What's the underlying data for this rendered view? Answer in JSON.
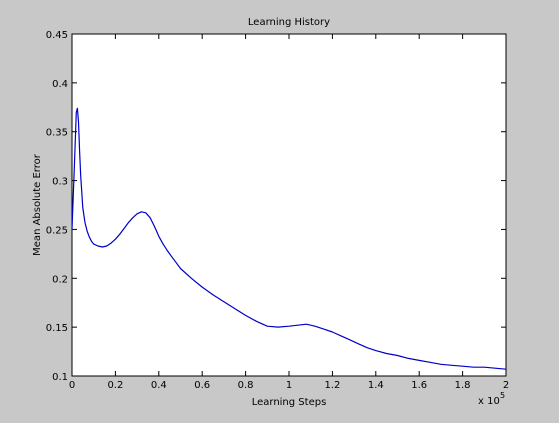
{
  "chart_data": {
    "type": "line",
    "title": "Learning History",
    "xlabel": "Learning Steps",
    "ylabel": "Mean Absolute Error",
    "x_multiplier_label": "x 10",
    "x_multiplier_exponent": "5",
    "xlim": [
      0,
      2
    ],
    "ylim": [
      0.1,
      0.45
    ],
    "x_ticks": [
      0,
      0.2,
      0.4,
      0.6,
      0.8,
      1,
      1.2,
      1.4,
      1.6,
      1.8,
      2
    ],
    "x_tick_labels": [
      "0",
      "0.2",
      "0.4",
      "0.6",
      "0.8",
      "1",
      "1.2",
      "1.4",
      "1.6",
      "1.8",
      "2"
    ],
    "y_ticks": [
      0.1,
      0.15,
      0.2,
      0.25,
      0.3,
      0.35,
      0.4,
      0.45
    ],
    "y_tick_labels": [
      "0.1",
      "0.15",
      "0.2",
      "0.25",
      "0.3",
      "0.35",
      "0.4",
      "0.45"
    ],
    "grid": false,
    "series": [
      {
        "color": "#0000cc",
        "x": [
          0,
          0.01,
          0.02,
          0.025,
          0.03,
          0.035,
          0.04,
          0.05,
          0.06,
          0.07,
          0.08,
          0.09,
          0.1,
          0.12,
          0.14,
          0.16,
          0.18,
          0.2,
          0.22,
          0.24,
          0.26,
          0.28,
          0.3,
          0.32,
          0.34,
          0.36,
          0.38,
          0.4,
          0.42,
          0.44,
          0.46,
          0.48,
          0.5,
          0.55,
          0.6,
          0.65,
          0.7,
          0.75,
          0.8,
          0.85,
          0.9,
          0.95,
          1.0,
          1.04,
          1.08,
          1.12,
          1.16,
          1.2,
          1.24,
          1.28,
          1.32,
          1.36,
          1.4,
          1.45,
          1.5,
          1.55,
          1.6,
          1.65,
          1.7,
          1.75,
          1.8,
          1.85,
          1.9,
          1.95,
          2.0
        ],
        "y": [
          0.25,
          0.31,
          0.37,
          0.374,
          0.36,
          0.33,
          0.305,
          0.272,
          0.257,
          0.248,
          0.242,
          0.238,
          0.235,
          0.233,
          0.232,
          0.233,
          0.236,
          0.24,
          0.245,
          0.251,
          0.257,
          0.262,
          0.266,
          0.268,
          0.267,
          0.262,
          0.253,
          0.243,
          0.235,
          0.228,
          0.222,
          0.216,
          0.21,
          0.2,
          0.191,
          0.183,
          0.176,
          0.169,
          0.162,
          0.156,
          0.151,
          0.15,
          0.151,
          0.152,
          0.153,
          0.151,
          0.148,
          0.145,
          0.141,
          0.137,
          0.133,
          0.129,
          0.126,
          0.123,
          0.121,
          0.118,
          0.116,
          0.114,
          0.112,
          0.111,
          0.11,
          0.109,
          0.109,
          0.108,
          0.107
        ]
      }
    ]
  }
}
